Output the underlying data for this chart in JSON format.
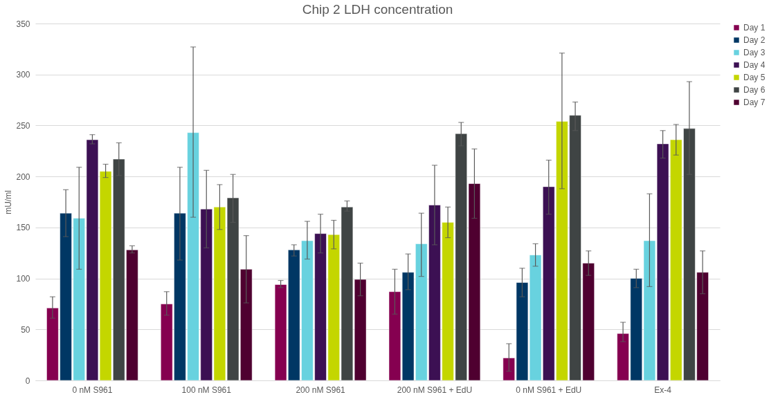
{
  "chart_data": {
    "type": "bar",
    "title": "Chip 2 LDH concentration",
    "ylabel": "mU/ml",
    "categories": [
      "0 nM S961",
      "100 nM S961",
      "200 nM S961",
      "200 nM S961 + EdU",
      "0 nM S961 + EdU",
      "Ex-4"
    ],
    "ylim": [
      0,
      350
    ],
    "yticks": [
      0,
      50,
      100,
      150,
      200,
      250,
      300,
      350
    ],
    "grid": "y",
    "legend": "right",
    "series": [
      {
        "name": "Day 1",
        "color": "#850050",
        "values": [
          71,
          75,
          94,
          87,
          22,
          46
        ],
        "errors": [
          [
            61,
            82
          ],
          [
            64,
            87
          ],
          [
            91,
            98
          ],
          [
            65,
            109
          ],
          [
            9,
            36
          ],
          [
            38,
            57
          ]
        ]
      },
      {
        "name": "Day 2",
        "color": "#003764",
        "values": [
          164,
          164,
          128,
          106,
          96,
          100
        ],
        "errors": [
          [
            141,
            187
          ],
          [
            118,
            209
          ],
          [
            122,
            133
          ],
          [
            89,
            124
          ],
          [
            82,
            110
          ],
          [
            91,
            109
          ]
        ]
      },
      {
        "name": "Day 3",
        "color": "#68d2df",
        "values": [
          159,
          243,
          137,
          134,
          123,
          137
        ],
        "errors": [
          [
            109,
            209
          ],
          [
            160,
            327
          ],
          [
            119,
            156
          ],
          [
            102,
            164
          ],
          [
            112,
            134
          ],
          [
            92,
            183
          ]
        ]
      },
      {
        "name": "Day 4",
        "color": "#3c1053",
        "values": [
          236,
          168,
          144,
          172,
          190,
          232
        ],
        "errors": [
          [
            232,
            241
          ],
          [
            130,
            206
          ],
          [
            125,
            163
          ],
          [
            133,
            211
          ],
          [
            163,
            216
          ],
          [
            218,
            245
          ]
        ]
      },
      {
        "name": "Day 5",
        "color": "#c4d600",
        "values": [
          205,
          170,
          143,
          155,
          254,
          236
        ],
        "errors": [
          [
            199,
            212
          ],
          [
            148,
            192
          ],
          [
            129,
            157
          ],
          [
            140,
            170
          ],
          [
            188,
            321
          ],
          [
            221,
            251
          ]
        ]
      },
      {
        "name": "Day 6",
        "color": "#3f4444",
        "values": [
          217,
          179,
          170,
          242,
          260,
          247
        ],
        "errors": [
          [
            201,
            233
          ],
          [
            155,
            202
          ],
          [
            166,
            176
          ],
          [
            230,
            253
          ],
          [
            245,
            273
          ],
          [
            202,
            293
          ]
        ]
      },
      {
        "name": "Day 7",
        "color": "#4f0030",
        "values": [
          128,
          109,
          99,
          193,
          115,
          106
        ],
        "errors": [
          [
            125,
            132
          ],
          [
            76,
            142
          ],
          [
            83,
            115
          ],
          [
            159,
            227
          ],
          [
            103,
            127
          ],
          [
            85,
            127
          ]
        ]
      }
    ]
  }
}
